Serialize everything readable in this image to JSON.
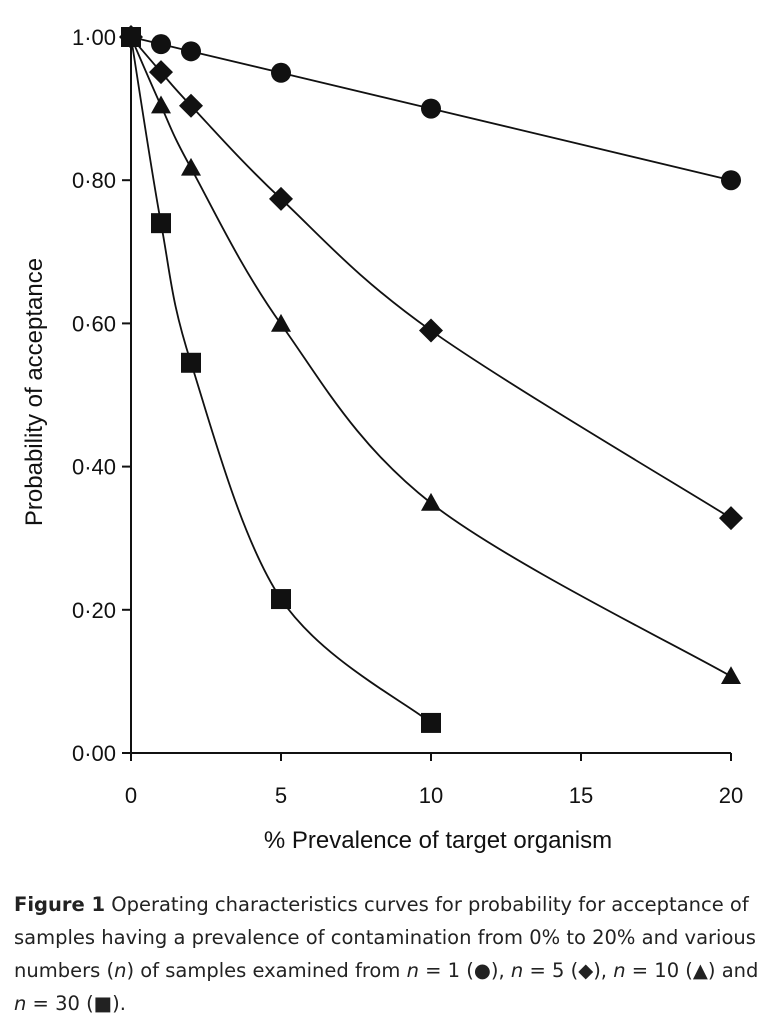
{
  "chart_data": {
    "type": "line",
    "xlabel": "% Prevalence of target organism",
    "ylabel": "Probability of acceptance",
    "xlim": [
      0,
      20
    ],
    "ylim": [
      0,
      1
    ],
    "x_ticks": [
      "0",
      "5",
      "10",
      "15",
      "20"
    ],
    "y_ticks": [
      "0·00",
      "0·20",
      "0·40",
      "0·60",
      "0·80",
      "1·00"
    ],
    "grid": false,
    "legend": "none",
    "series": [
      {
        "marker": "circle",
        "x": [
          0,
          1,
          2,
          5,
          10,
          20
        ],
        "values": [
          1.0,
          0.99,
          0.98,
          0.95,
          0.9,
          0.8
        ]
      },
      {
        "marker": "diamond",
        "x": [
          0,
          1,
          2,
          5,
          10,
          20
        ],
        "values": [
          1.0,
          0.951,
          0.904,
          0.774,
          0.59,
          0.328
        ]
      },
      {
        "marker": "triangle",
        "x": [
          0,
          1,
          2,
          5,
          10,
          20
        ],
        "values": [
          1.0,
          0.904,
          0.817,
          0.599,
          0.349,
          0.107
        ]
      },
      {
        "marker": "square",
        "x": [
          0,
          1,
          2,
          5,
          10
        ],
        "values": [
          1.0,
          0.74,
          0.545,
          0.215,
          0.042
        ]
      }
    ]
  },
  "caption": {
    "label": "Figure 1",
    "text_1": " Operating characteristics curves for probability for acceptance of samples having a prevalence of contamination from 0% to 20% and various numbers (",
    "n": "n",
    "text_2": ") of samples examined from ",
    "eq1": " = 1 (●), ",
    "eq2": " = 5 (◆), ",
    "eq3": " = 10 (▲) and ",
    "eq4": " = 30 (■)."
  },
  "colors": {
    "ink": "#111111"
  }
}
